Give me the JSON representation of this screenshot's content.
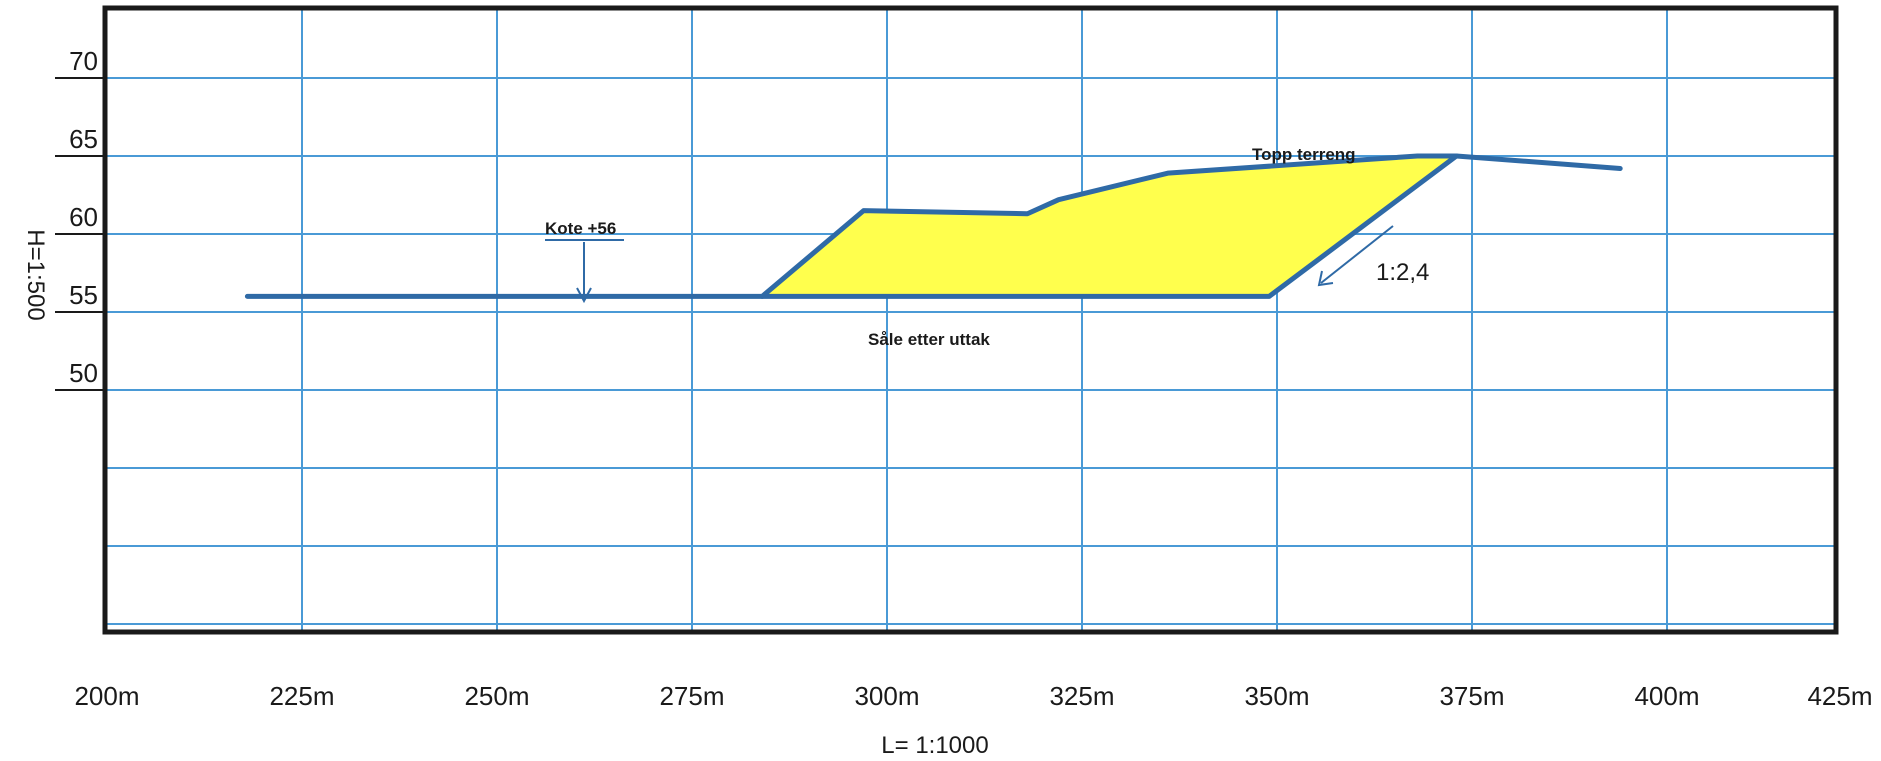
{
  "chart_data": {
    "type": "line",
    "x_ticks": [
      "200m",
      "225m",
      "250m",
      "275m",
      "300m",
      "325m",
      "350m",
      "375m",
      "400m",
      "425m"
    ],
    "y_ticks": [
      "50",
      "55",
      "60",
      "65",
      "70"
    ],
    "xlim": [
      200,
      425
    ],
    "ylim": [
      45,
      75
    ],
    "xlabel": "L= 1:1000",
    "ylabel": "H=1:500",
    "grid": true,
    "series": [
      {
        "name": "",
        "color": "#2f6aa6",
        "points": [
          [
            218,
            56
          ],
          [
            284,
            56
          ],
          [
            349,
            56
          ],
          [
            373,
            65
          ],
          [
            394,
            64.2
          ]
        ]
      },
      {
        "name": "Topp terreng",
        "color": "#2f6aa6",
        "points": [
          [
            284,
            56
          ],
          [
            297,
            61.5
          ],
          [
            318,
            61.3
          ],
          [
            322,
            62.2
          ],
          [
            336,
            63.9
          ],
          [
            368,
            65
          ],
          [
            373,
            65
          ]
        ]
      }
    ],
    "fill": {
      "color": "#ffff4d",
      "polygon": [
        [
          284,
          56
        ],
        [
          297,
          61.5
        ],
        [
          318,
          61.3
        ],
        [
          322,
          62.2
        ],
        [
          336,
          63.9
        ],
        [
          368,
          65
        ],
        [
          373,
          65
        ],
        [
          349,
          56
        ]
      ]
    },
    "annotations": {
      "kote": "Kote +56",
      "topp": "Topp terreng",
      "saale": "Såle etter uttak",
      "slope": "1:2,4"
    }
  }
}
